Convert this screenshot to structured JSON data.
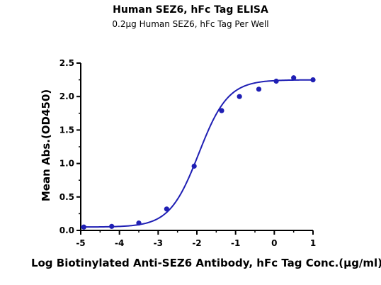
{
  "chart_data": {
    "type": "scatter",
    "title": "Human SEZ6, hFc Tag ELISA",
    "subtitle": "0.2µg Human SEZ6, hFc Tag Per Well",
    "xlabel": "Log Biotinylated Anti-SEZ6 Antibody, hFc Tag Conc.(µg/ml)",
    "ylabel": "Mean Abs.(OD450)",
    "xlim": [
      -5,
      1
    ],
    "ylim": [
      0,
      2.5
    ],
    "xticks": [
      -5,
      -4,
      -3,
      -2,
      -1,
      0,
      1
    ],
    "yticks": [
      0.0,
      0.5,
      1.0,
      1.5,
      2.0,
      2.5
    ],
    "xtick_labels": [
      "-5",
      "-4",
      "-3",
      "-2",
      "-1",
      "0",
      "1"
    ],
    "ytick_labels": [
      "0.0",
      "0.5",
      "1.0",
      "1.5",
      "2.0",
      "2.5"
    ],
    "grid": false,
    "color": "#1f1fb4",
    "points": [
      {
        "x": -4.92,
        "y": 0.05
      },
      {
        "x": -4.2,
        "y": 0.06
      },
      {
        "x": -3.5,
        "y": 0.11
      },
      {
        "x": -2.78,
        "y": 0.32
      },
      {
        "x": -2.07,
        "y": 0.96
      },
      {
        "x": -1.36,
        "y": 1.79
      },
      {
        "x": -0.9,
        "y": 2.0
      },
      {
        "x": -0.4,
        "y": 2.11
      },
      {
        "x": 0.05,
        "y": 2.23
      },
      {
        "x": 0.5,
        "y": 2.28
      },
      {
        "x": 1.0,
        "y": 2.25
      }
    ],
    "fit_curve": {
      "model": "4PL",
      "bottom": 0.05,
      "top": 2.25,
      "log_ec50": -1.95,
      "hill_slope": 1.15
    }
  }
}
